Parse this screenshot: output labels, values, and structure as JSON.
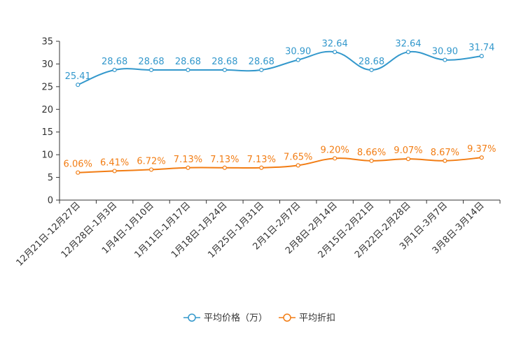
{
  "chart_data": {
    "type": "line",
    "categories": [
      "12月21日-12月27日",
      "12月28日-1月3日",
      "1月4日-1月10日",
      "1月11日-1月17日",
      "1月18日-1月24日",
      "1月25日-1月31日",
      "2月1日-2月7日",
      "2月8日-2月14日",
      "2月15日-2月21日",
      "2月22日-2月28日",
      "3月1日-3月7日",
      "3月8日-3月14日"
    ],
    "ylim": [
      0,
      35
    ],
    "yticks": [
      0,
      5,
      10,
      15,
      20,
      25,
      30,
      35
    ],
    "legend_position": "bottom-center",
    "series": [
      {
        "name": "平均价格（万）",
        "color": "#3398cc",
        "values": [
          25.41,
          28.68,
          28.68,
          28.68,
          28.68,
          28.68,
          30.9,
          32.64,
          28.68,
          32.64,
          30.9,
          31.74
        ],
        "labels": [
          "25.41",
          "28.68",
          "28.68",
          "28.68",
          "28.68",
          "28.68",
          "30.90",
          "32.64",
          "28.68",
          "32.64",
          "30.90",
          "31.74"
        ]
      },
      {
        "name": "平均折扣",
        "color": "#f27d14",
        "values": [
          6.06,
          6.41,
          6.72,
          7.13,
          7.13,
          7.13,
          7.65,
          9.2,
          8.66,
          9.07,
          8.67,
          9.37
        ],
        "labels": [
          "6.06%",
          "6.41%",
          "6.72%",
          "7.13%",
          "7.13%",
          "7.13%",
          "7.65%",
          "9.20%",
          "8.66%",
          "9.07%",
          "8.67%",
          "9.37%"
        ]
      }
    ]
  }
}
